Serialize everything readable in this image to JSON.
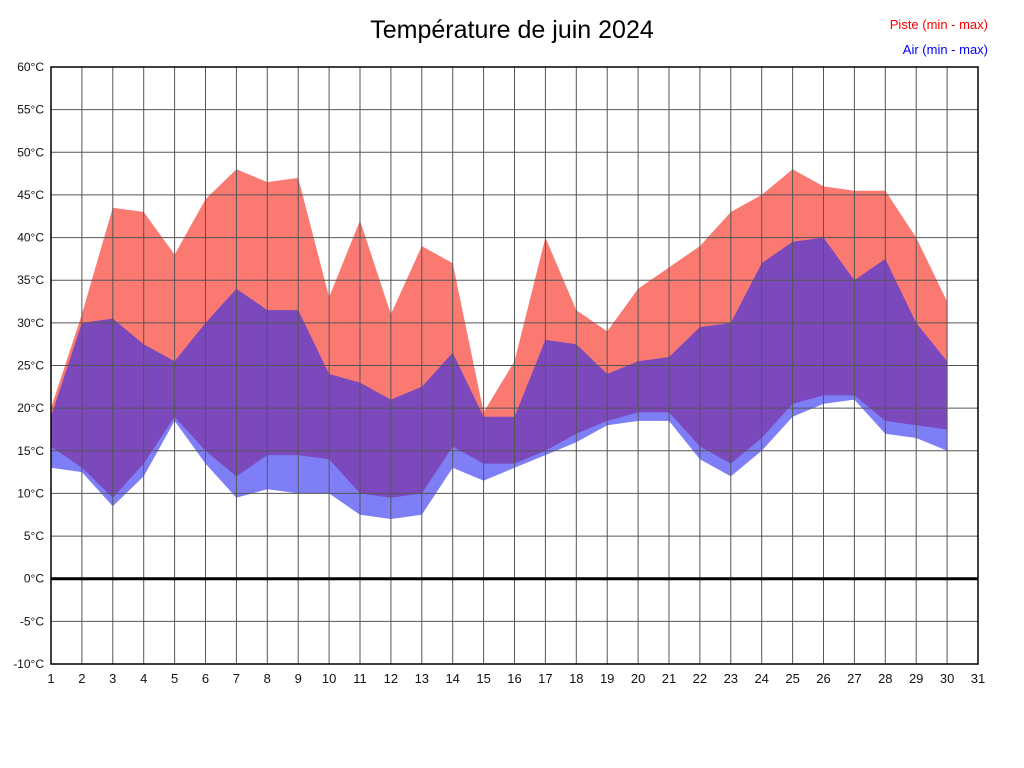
{
  "chart_data": {
    "type": "area",
    "title": "Température de juin 2024",
    "xlabel": "",
    "ylabel": "",
    "ylim": [
      -10,
      60
    ],
    "ytick_step": 5,
    "grid": true,
    "zero_line": true,
    "legend_position": "top-right",
    "x": [
      1,
      2,
      3,
      4,
      5,
      6,
      7,
      8,
      9,
      10,
      11,
      12,
      13,
      14,
      15,
      16,
      17,
      18,
      19,
      20,
      21,
      22,
      23,
      24,
      25,
      26,
      27,
      28,
      29,
      30
    ],
    "x_ticks": [
      1,
      2,
      3,
      4,
      5,
      6,
      7,
      8,
      9,
      10,
      11,
      12,
      13,
      14,
      15,
      16,
      17,
      18,
      19,
      20,
      21,
      22,
      23,
      24,
      25,
      26,
      27,
      28,
      29,
      30,
      31
    ],
    "y_tick_labels": [
      "60°C",
      "55°C",
      "50°C",
      "45°C",
      "40°C",
      "35°C",
      "30°C",
      "25°C",
      "20°C",
      "15°C",
      "10°C",
      "5°C",
      "0°C",
      "-5°C",
      "-10°C"
    ],
    "series": [
      {
        "name": "Piste (min - max)",
        "label_color": "#ff0000",
        "fill": "#fa7a72",
        "min": [
          15.5,
          13,
          9.5,
          13.5,
          19,
          15,
          12,
          14.5,
          14.5,
          14,
          10,
          9.5,
          10,
          15.5,
          13.5,
          13.5,
          15,
          17,
          18.5,
          19.5,
          19.5,
          15.5,
          13.5,
          16.5,
          20.5,
          21.5,
          21.5,
          18.5,
          18,
          17.5
        ],
        "max": [
          20,
          31,
          43.5,
          43,
          38,
          44.5,
          48,
          46.5,
          47,
          33,
          42,
          31,
          39,
          37,
          19.5,
          25.5,
          40,
          31.5,
          29,
          34,
          36.5,
          39,
          43,
          45,
          48,
          46,
          45.5,
          45.5,
          40,
          32.5
        ]
      },
      {
        "name": "Air (min - max)",
        "label_color": "#0000ff",
        "fill": "rgba(40,40,240,0.6)",
        "min": [
          13,
          12.5,
          8.5,
          12,
          18.5,
          13.5,
          9.5,
          10.5,
          10,
          10,
          7.5,
          7,
          7.5,
          13,
          11.5,
          13,
          14.5,
          16,
          18,
          18.5,
          18.5,
          14,
          12,
          15,
          19,
          20.5,
          21,
          17,
          16.5,
          15
        ],
        "max": [
          19,
          30,
          30.5,
          27.5,
          25.5,
          30,
          34,
          31.5,
          31.5,
          24,
          23,
          21,
          22.5,
          26.5,
          19,
          19,
          28,
          27.5,
          24,
          25.5,
          26,
          29.5,
          30,
          37,
          39.5,
          40,
          35,
          37.5,
          30,
          25.5
        ]
      }
    ]
  }
}
